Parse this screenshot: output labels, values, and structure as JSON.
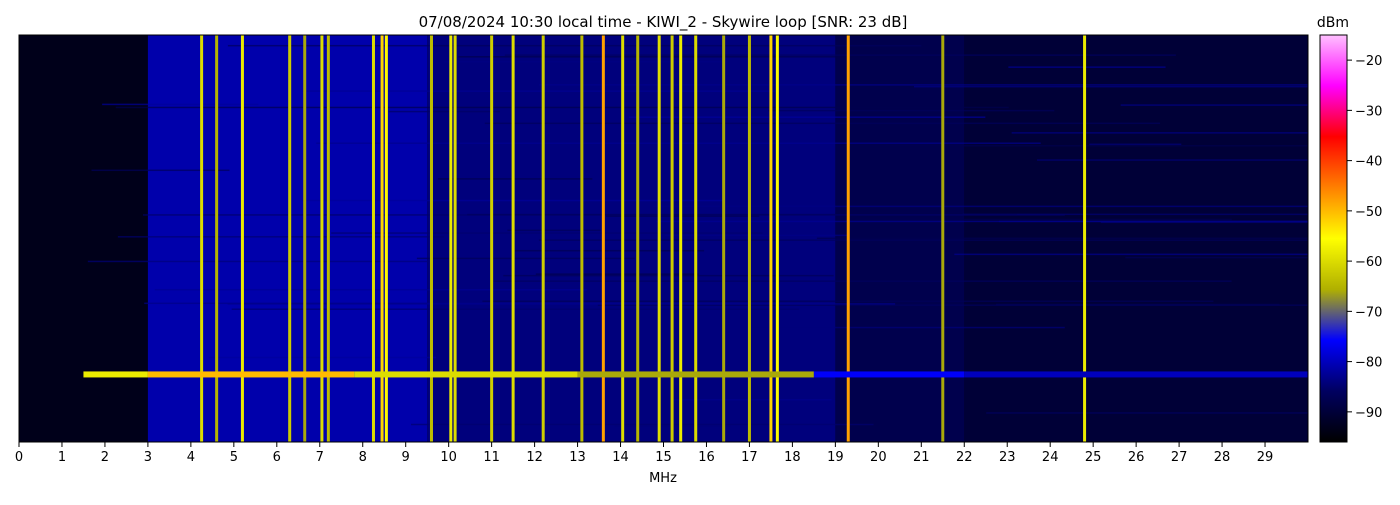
{
  "chart_data": {
    "type": "heatmap",
    "title": "07/08/2024 10:30 local time - KIWI_2 - Skywire loop [SNR: 23 dB]",
    "xlabel": "MHz",
    "ylabel": "",
    "xlim": [
      0,
      30
    ],
    "x_ticks": [
      "0",
      "1",
      "2",
      "3",
      "4",
      "5",
      "6",
      "7",
      "8",
      "9",
      "10",
      "11",
      "12",
      "13",
      "14",
      "15",
      "16",
      "17",
      "18",
      "19",
      "20",
      "21",
      "22",
      "23",
      "24",
      "25",
      "26",
      "27",
      "28",
      "29"
    ],
    "colorbar": {
      "label": "dBm",
      "range": [
        -96,
        -15
      ],
      "ticks": [
        "−20",
        "−30",
        "−40",
        "−50",
        "−60",
        "−70",
        "−80",
        "−90"
      ],
      "tick_values": [
        -20,
        -30,
        -40,
        -50,
        -60,
        -70,
        -80,
        -90
      ],
      "colors": [
        "#000000",
        "#000060",
        "#0000ff",
        "#b0b000",
        "#ffff00",
        "#ff8000",
        "#ff0000",
        "#ff00ff",
        "#ffc0ff"
      ]
    },
    "colors": {
      "background": "#00001a",
      "noise_floor": "#0000a0",
      "strong": "#ffcc00",
      "hot": "#ff3300"
    },
    "broadband_regions": [
      {
        "from": 3.0,
        "to": 9.5,
        "level": -78
      },
      {
        "from": 9.5,
        "to": 19.0,
        "level": -82
      },
      {
        "from": 19.0,
        "to": 22.0,
        "level": -86
      },
      {
        "from": 22.0,
        "to": 30.0,
        "level": -89
      }
    ],
    "signals": [
      {
        "freq": 4.25,
        "level": -60
      },
      {
        "freq": 4.6,
        "level": -65
      },
      {
        "freq": 5.2,
        "level": -58
      },
      {
        "freq": 6.3,
        "level": -62
      },
      {
        "freq": 6.65,
        "level": -66
      },
      {
        "freq": 7.05,
        "level": -60
      },
      {
        "freq": 7.2,
        "level": -64
      },
      {
        "freq": 8.25,
        "level": -60
      },
      {
        "freq": 8.45,
        "level": -52
      },
      {
        "freq": 8.55,
        "level": -55
      },
      {
        "freq": 9.6,
        "level": -64
      },
      {
        "freq": 10.05,
        "level": -58
      },
      {
        "freq": 10.15,
        "level": -60
      },
      {
        "freq": 11.0,
        "level": -62
      },
      {
        "freq": 11.5,
        "level": -60
      },
      {
        "freq": 12.2,
        "level": -62
      },
      {
        "freq": 13.1,
        "level": -64
      },
      {
        "freq": 13.6,
        "level": -48
      },
      {
        "freq": 14.05,
        "level": -60
      },
      {
        "freq": 14.4,
        "level": -65
      },
      {
        "freq": 14.9,
        "level": -60
      },
      {
        "freq": 15.2,
        "level": -62
      },
      {
        "freq": 15.4,
        "level": -58
      },
      {
        "freq": 15.75,
        "level": -60
      },
      {
        "freq": 16.4,
        "level": -66
      },
      {
        "freq": 17.0,
        "level": -64
      },
      {
        "freq": 17.5,
        "level": -52
      },
      {
        "freq": 17.65,
        "level": -56
      },
      {
        "freq": 19.3,
        "level": -48
      },
      {
        "freq": 21.5,
        "level": -66
      },
      {
        "freq": 24.8,
        "level": -58
      }
    ],
    "sweep_line": {
      "level_at_dbm": -82,
      "from_mhz": 1.5,
      "to_mhz": 30,
      "segments": [
        {
          "from": 1.5,
          "to": 3.0,
          "level": -58
        },
        {
          "from": 3.0,
          "to": 7.8,
          "level": -50
        },
        {
          "from": 7.8,
          "to": 13.0,
          "level": -60
        },
        {
          "from": 13.0,
          "to": 18.5,
          "level": -66
        },
        {
          "from": 18.5,
          "to": 22.0,
          "level": -76
        },
        {
          "from": 22.0,
          "to": 30.0,
          "level": -80
        }
      ]
    }
  }
}
